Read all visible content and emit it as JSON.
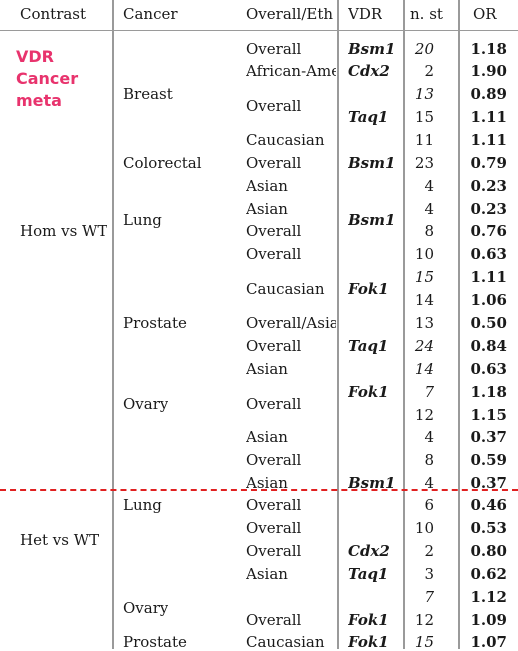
{
  "brand_color": "#e8336d",
  "divider_color": "#e02020",
  "headers": {
    "contrast": "Contrast",
    "cancer": "Cancer",
    "overall": "Overall/Eth",
    "vdr": "VDR",
    "nst": "n. st",
    "or": "OR"
  },
  "meta_label": {
    "line1": "VDR",
    "line2": "Cancer",
    "line3": "meta"
  },
  "contrasts": [
    "Hom vs WT",
    "Het vs WT"
  ],
  "cancers": [
    "Breast",
    "Colorectal",
    "Lung",
    "Prostate",
    "Ovary",
    "Lung",
    "Ovary",
    "Prostate"
  ],
  "rows": [
    {
      "ov": "Overall",
      "vdr": "Bsm1",
      "n": "20",
      "n_italic": true,
      "or": "1.18"
    },
    {
      "ov": "African-Ame",
      "vdr": "Cdx2",
      "n": "2",
      "n_italic": false,
      "or": "1.90"
    },
    {
      "ov": "",
      "vdr": "",
      "n": "13",
      "n_italic": true,
      "or": "0.89"
    },
    {
      "ov": "Overall",
      "vdr": "Taq1",
      "n": "15",
      "n_italic": false,
      "or": "1.11"
    },
    {
      "ov": "Caucasian",
      "vdr": "",
      "n": "11",
      "n_italic": false,
      "or": "1.11"
    },
    {
      "ov": "Overall",
      "vdr": "Bsm1",
      "n": "23",
      "n_italic": false,
      "or": "0.79"
    },
    {
      "ov": "Asian",
      "vdr": "",
      "n": "4",
      "n_italic": false,
      "or": "0.23"
    },
    {
      "ov": "Asian",
      "vdr": "",
      "n": "4",
      "n_italic": false,
      "or": "0.23"
    },
    {
      "ov": "Overall",
      "vdr": "Bsm1",
      "n": "8",
      "n_italic": false,
      "or": "0.76"
    },
    {
      "ov": "Overall",
      "vdr": "",
      "n": "10",
      "n_italic": false,
      "or": "0.63"
    },
    {
      "ov": "",
      "vdr": "",
      "n": "15",
      "n_italic": true,
      "or": "1.11"
    },
    {
      "ov": "Caucasian",
      "vdr": "Fok1",
      "n": "14",
      "n_italic": false,
      "or": "1.06"
    },
    {
      "ov": "Overall/Asia",
      "vdr": "",
      "n": "13",
      "n_italic": false,
      "or": "0.50"
    },
    {
      "ov": "Overall",
      "vdr": "Taq1",
      "n": "24",
      "n_italic": true,
      "or": "0.84"
    },
    {
      "ov": "Asian",
      "vdr": "",
      "n": "14",
      "n_italic": true,
      "or": "0.63"
    },
    {
      "ov": "",
      "vdr": "Fok1",
      "n": "7",
      "n_italic": true,
      "or": "1.18"
    },
    {
      "ov": "Overall",
      "vdr": "",
      "n": "12",
      "n_italic": false,
      "or": "1.15"
    },
    {
      "ov": "Asian",
      "vdr": "",
      "n": "4",
      "n_italic": false,
      "or": "0.37"
    },
    {
      "ov": "Overall",
      "vdr": "",
      "n": "8",
      "n_italic": false,
      "or": "0.59"
    },
    {
      "ov": "Asian",
      "vdr": "Bsm1",
      "n": "4",
      "n_italic": false,
      "or": "0.37"
    },
    {
      "ov": "Overall",
      "vdr": "",
      "n": "6",
      "n_italic": false,
      "or": "0.46"
    },
    {
      "ov": "Overall",
      "vdr": "",
      "n": "10",
      "n_italic": false,
      "or": "0.53"
    },
    {
      "ov": "Overall",
      "vdr": "Cdx2",
      "n": "2",
      "n_italic": false,
      "or": "0.80"
    },
    {
      "ov": "Asian",
      "vdr": "Taq1",
      "n": "3",
      "n_italic": false,
      "or": "0.62"
    },
    {
      "ov": "",
      "vdr": "",
      "n": "7",
      "n_italic": true,
      "or": "1.12"
    },
    {
      "ov": "Overall",
      "vdr": "Fok1",
      "n": "12",
      "n_italic": false,
      "or": "1.09"
    },
    {
      "ov": "Caucasian",
      "vdr": "Fok1",
      "n": "15",
      "n_italic": true,
      "or": "1.07"
    }
  ]
}
